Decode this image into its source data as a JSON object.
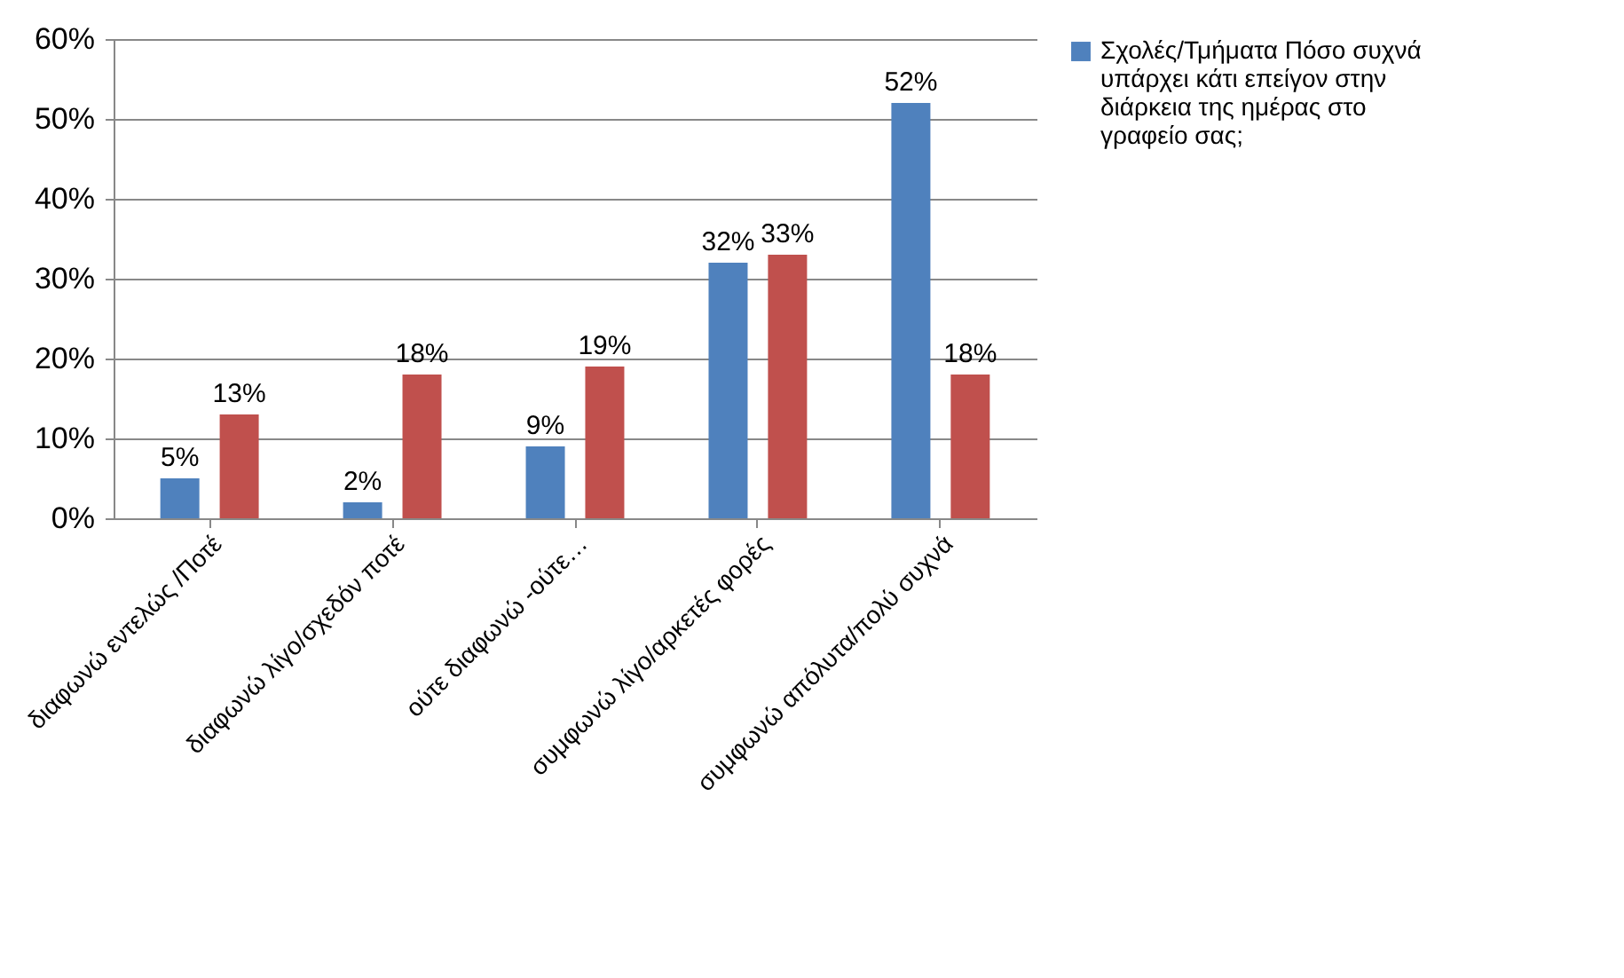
{
  "chart_data": {
    "type": "bar",
    "categories": [
      "διαφωνώ εντελώς /Ποτέ",
      "διαφωνώ λίγο/σχεδόν ποτέ",
      "ούτε διαφωνώ -ούτε…",
      "συμφωνώ λίγο/αρκετές φορές",
      "συμφωνώ απόλυτα/πολύ συχνά"
    ],
    "series": [
      {
        "name": "Σχολές/Τμήματα Πόσο συχνά υπάρχει  κάτι επείγον στην διάρκεια της ημέρας στο γραφείο σας;",
        "color": "#4f81bd",
        "values": [
          5,
          2,
          9,
          32,
          52
        ],
        "value_labels": [
          "5%",
          "2%",
          "9%",
          "32%",
          "52%"
        ]
      },
      {
        "color": "#c0504d",
        "values": [
          13,
          18,
          19,
          33,
          18
        ],
        "value_labels": [
          "13%",
          "18%",
          "19%",
          "33%",
          "18%"
        ]
      }
    ],
    "ylim": [
      0,
      60
    ],
    "yticks": [
      {
        "value": 0,
        "label": "0%"
      },
      {
        "value": 10,
        "label": "10%"
      },
      {
        "value": 20,
        "label": "20%"
      },
      {
        "value": 30,
        "label": "30%"
      },
      {
        "value": 40,
        "label": "40%"
      },
      {
        "value": 50,
        "label": "50%"
      },
      {
        "value": 60,
        "label": "60%"
      }
    ],
    "grid": "y",
    "legend": "right"
  }
}
